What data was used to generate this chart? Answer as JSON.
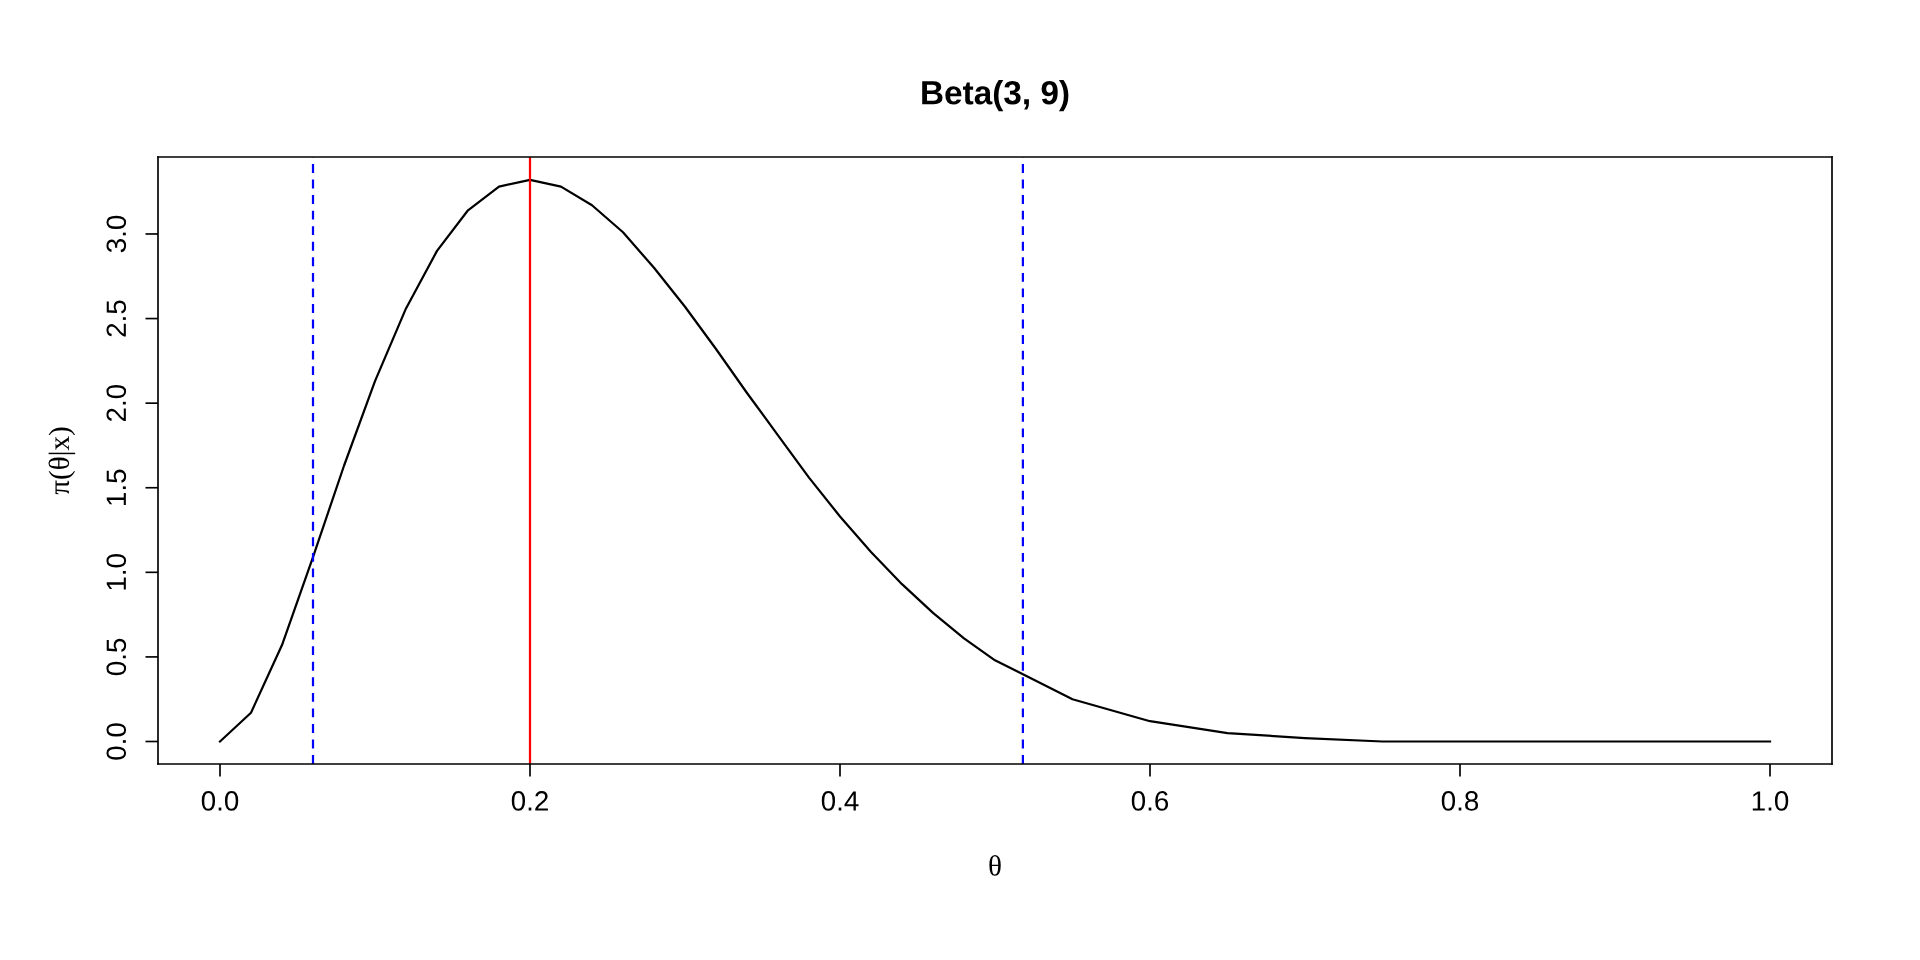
{
  "chart_data": {
    "type": "line",
    "title": "Beta(3, 9)",
    "xlabel": "θ",
    "ylabel": "π(θ|x)",
    "x": [
      0,
      0.02,
      0.04,
      0.06,
      0.08,
      0.1,
      0.12,
      0.14,
      0.16,
      0.18,
      0.2,
      0.22,
      0.24,
      0.26,
      0.28,
      0.3,
      0.32,
      0.34,
      0.36,
      0.38,
      0.4,
      0.42,
      0.44,
      0.46,
      0.48,
      0.5,
      0.55,
      0.6,
      0.65,
      0.7,
      0.75,
      0.8,
      0.9,
      1.0
    ],
    "series": [
      {
        "color": "#000000",
        "values": [
          0,
          0.17,
          0.57,
          1.09,
          1.63,
          2.13,
          2.56,
          2.9,
          3.14,
          3.28,
          3.32,
          3.28,
          3.17,
          3.01,
          2.8,
          2.57,
          2.32,
          2.06,
          1.81,
          1.56,
          1.33,
          1.12,
          0.93,
          0.76,
          0.61,
          0.48,
          0.25,
          0.12,
          0.05,
          0.02,
          0,
          0,
          0,
          0
        ]
      }
    ],
    "xlim": [
      -0.04,
      1.04
    ],
    "ylim": [
      -0.133,
      3.455
    ],
    "xticks": [
      {
        "value": 0,
        "label": "0.0"
      },
      0.2,
      0.4,
      0.6,
      0.8,
      {
        "value": 1,
        "label": "1.0"
      }
    ],
    "yticks": [
      {
        "value": 0,
        "label": "0.0"
      },
      0.5,
      {
        "value": 1,
        "label": "1.0"
      },
      1.5,
      {
        "value": 2,
        "label": "2.0"
      },
      2.5,
      {
        "value": 3,
        "label": "3.0"
      }
    ],
    "grid": false,
    "legend": false,
    "marker": "none",
    "line_style": "solid",
    "ref_lines": [
      {
        "axis": "x",
        "value": 0.06,
        "color": "#0000ff",
        "line_style": "dashed"
      },
      {
        "axis": "x",
        "value": 0.2,
        "color": "#ff0000",
        "line_style": "solid"
      },
      {
        "axis": "x",
        "value": 0.518,
        "color": "#0000ff",
        "line_style": "dashed"
      }
    ]
  }
}
